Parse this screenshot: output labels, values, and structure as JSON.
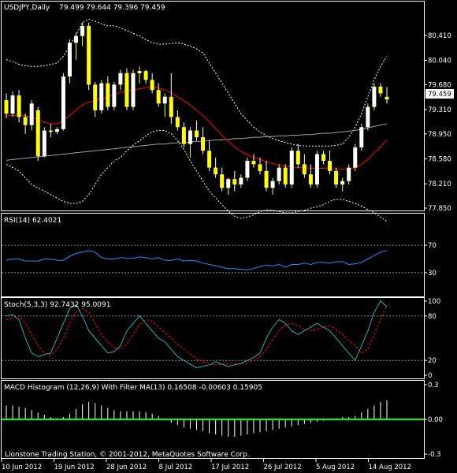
{
  "header": {
    "symbol": "USDJPY,Daily",
    "ohlc": "79.499 79.644 79.396 79.459"
  },
  "current_price_label": "79.459",
  "footer_text": "Lionstone Trading Station, © 2001-2012, MetaQuotes Software Corp.",
  "colors": {
    "background": "#000000",
    "bull_candle": "#ffff00",
    "bear_candle": "#ffffff",
    "ma_fast": "#ff0000",
    "ma_slow": "#a0a0a0",
    "bands": "#ffffff",
    "rsi": "#1e90ff",
    "stoch_main": "#20b2aa",
    "stoch_signal": "#ff0000",
    "macd_hist": "#ffffff",
    "macd_filter": "#00ff00"
  },
  "chart_data": [
    {
      "type": "candlestick",
      "title": "USDJPY,Daily",
      "y_ticks": [
        "80.410",
        "80.040",
        "79.680",
        "79.310",
        "78.950",
        "78.580",
        "78.210",
        "77.850"
      ],
      "ylim": [
        77.85,
        80.7
      ],
      "x_ticks": [
        "10 Jun 2012",
        "19 Jun 2012",
        "28 Jun 2012",
        "8 Jul 2012",
        "17 Jul 2012",
        "26 Jul 2012",
        "5 Aug 2012",
        "14 Aug 2012"
      ],
      "candles": [
        [
          79.45,
          79.55,
          79.18,
          79.25
        ],
        [
          79.25,
          79.58,
          79.2,
          79.52
        ],
        [
          79.52,
          79.6,
          79.12,
          79.2
        ],
        [
          79.2,
          79.25,
          78.95,
          79.08
        ],
        [
          79.08,
          79.45,
          79.0,
          79.4
        ],
        [
          79.3,
          79.35,
          78.55,
          78.62
        ],
        [
          78.62,
          79.05,
          78.6,
          79.0
        ],
        [
          79.0,
          79.1,
          78.9,
          78.98
        ],
        [
          78.98,
          79.05,
          78.95,
          79.02
        ],
        [
          79.02,
          79.85,
          79.0,
          79.8
        ],
        [
          79.8,
          80.35,
          79.7,
          80.3
        ],
        [
          80.3,
          80.45,
          80.05,
          80.4
        ],
        [
          80.4,
          80.6,
          80.25,
          80.55
        ],
        [
          80.55,
          80.6,
          79.6,
          79.68
        ],
        [
          79.68,
          79.72,
          79.2,
          79.3
        ],
        [
          79.3,
          79.75,
          79.25,
          79.7
        ],
        [
          79.7,
          79.8,
          79.3,
          79.35
        ],
        [
          79.35,
          79.72,
          79.3,
          79.68
        ],
        [
          79.68,
          79.9,
          79.6,
          79.85
        ],
        [
          79.85,
          79.92,
          79.3,
          79.35
        ],
        [
          79.35,
          79.9,
          79.3,
          79.85
        ],
        [
          79.85,
          79.95,
          79.7,
          79.88
        ],
        [
          79.88,
          79.9,
          79.7,
          79.75
        ],
        [
          79.75,
          79.85,
          79.55,
          79.6
        ],
        [
          79.6,
          79.7,
          79.35,
          79.4
        ],
        [
          79.4,
          79.55,
          79.2,
          79.5
        ],
        [
          79.5,
          79.85,
          79.1,
          79.2
        ],
        [
          79.2,
          79.3,
          79.0,
          79.05
        ],
        [
          79.05,
          79.12,
          78.75,
          78.8
        ],
        [
          78.8,
          79.05,
          78.6,
          79.0
        ],
        [
          79.0,
          79.15,
          78.85,
          78.9
        ],
        [
          78.9,
          79.05,
          78.65,
          78.7
        ],
        [
          78.7,
          78.85,
          78.4,
          78.45
        ],
        [
          78.45,
          78.6,
          78.3,
          78.35
        ],
        [
          78.35,
          78.45,
          78.1,
          78.15
        ],
        [
          78.15,
          78.3,
          78.05,
          78.28
        ],
        [
          78.28,
          78.4,
          78.1,
          78.2
        ],
        [
          78.2,
          78.35,
          78.15,
          78.3
        ],
        [
          78.3,
          78.6,
          78.25,
          78.55
        ],
        [
          78.55,
          78.65,
          78.45,
          78.5
        ],
        [
          78.5,
          78.6,
          78.35,
          78.4
        ],
        [
          78.4,
          78.55,
          78.1,
          78.15
        ],
        [
          78.15,
          78.3,
          78.05,
          78.25
        ],
        [
          78.25,
          78.5,
          78.2,
          78.45
        ],
        [
          78.45,
          78.5,
          78.15,
          78.2
        ],
        [
          78.2,
          78.75,
          78.15,
          78.7
        ],
        [
          78.7,
          78.8,
          78.45,
          78.5
        ],
        [
          78.5,
          78.65,
          78.3,
          78.35
        ],
        [
          78.35,
          78.5,
          78.15,
          78.2
        ],
        [
          78.2,
          78.7,
          78.15,
          78.65
        ],
        [
          78.65,
          78.7,
          78.5,
          78.55
        ],
        [
          78.55,
          78.7,
          78.35,
          78.4
        ],
        [
          78.4,
          78.45,
          78.15,
          78.2
        ],
        [
          78.2,
          78.3,
          78.1,
          78.25
        ],
        [
          78.25,
          78.5,
          78.2,
          78.45
        ],
        [
          78.45,
          78.8,
          78.4,
          78.75
        ],
        [
          78.75,
          79.1,
          78.7,
          79.05
        ],
        [
          79.05,
          79.4,
          79.0,
          79.35
        ],
        [
          79.35,
          79.7,
          79.3,
          79.65
        ],
        [
          79.65,
          79.7,
          79.5,
          79.55
        ],
        [
          79.499,
          79.644,
          79.396,
          79.459
        ]
      ],
      "ma_fast": [
        79.22,
        79.22,
        79.23,
        79.22,
        79.2,
        79.16,
        79.12,
        79.1,
        79.1,
        79.15,
        79.22,
        79.3,
        79.38,
        79.42,
        79.44,
        79.47,
        79.5,
        79.53,
        79.57,
        79.58,
        79.6,
        79.62,
        79.63,
        79.64,
        79.63,
        79.6,
        79.56,
        79.5,
        79.44,
        79.38,
        79.3,
        79.22,
        79.13,
        79.03,
        78.93,
        78.84,
        78.76,
        78.69,
        78.64,
        78.6,
        78.57,
        78.54,
        78.51,
        78.49,
        78.47,
        78.46,
        78.45,
        78.45,
        78.44,
        78.44,
        78.44,
        78.44,
        78.43,
        78.43,
        78.43,
        78.45,
        78.5,
        78.57,
        78.67,
        78.76,
        78.86
      ],
      "ma_slow": [
        78.56,
        78.57,
        78.58,
        78.59,
        78.6,
        78.61,
        78.62,
        78.63,
        78.64,
        78.65,
        78.66,
        78.67,
        78.68,
        78.69,
        78.7,
        78.71,
        78.72,
        78.73,
        78.74,
        78.75,
        78.76,
        78.77,
        78.78,
        78.79,
        78.8,
        78.8,
        78.81,
        78.82,
        78.82,
        78.83,
        78.84,
        78.84,
        78.85,
        78.86,
        78.86,
        78.87,
        78.88,
        78.88,
        78.89,
        78.9,
        78.9,
        78.91,
        78.91,
        78.92,
        78.92,
        78.93,
        78.93,
        78.94,
        78.94,
        78.95,
        78.96,
        78.96,
        78.97,
        78.98,
        78.99,
        79.0,
        79.02,
        79.04,
        79.06,
        79.08,
        79.1
      ],
      "band_upper": [
        80.05,
        80.02,
        79.98,
        79.96,
        79.95,
        79.95,
        79.96,
        79.98,
        80.0,
        80.1,
        80.25,
        80.42,
        80.6,
        80.65,
        80.62,
        80.58,
        80.55,
        80.55,
        80.52,
        80.48,
        80.44,
        80.4,
        80.35,
        80.3,
        80.28,
        80.28,
        80.29,
        80.3,
        80.28,
        80.25,
        80.21,
        80.15,
        80.0,
        79.85,
        79.7,
        79.55,
        79.4,
        79.25,
        79.15,
        79.05,
        78.98,
        78.92,
        78.88,
        78.85,
        78.82,
        78.8,
        78.78,
        78.77,
        78.77,
        78.77,
        78.77,
        78.77,
        78.78,
        78.8,
        78.9,
        79.05,
        79.25,
        79.5,
        79.75,
        79.95,
        80.1
      ],
      "band_lower": [
        78.5,
        78.45,
        78.4,
        78.3,
        78.2,
        78.15,
        78.1,
        78.05,
        78.0,
        77.95,
        77.92,
        77.92,
        77.95,
        78.05,
        78.2,
        78.35,
        78.45,
        78.55,
        78.6,
        78.7,
        78.78,
        78.85,
        78.92,
        78.98,
        79.0,
        79.0,
        78.95,
        78.85,
        78.72,
        78.55,
        78.4,
        78.25,
        78.1,
        78.0,
        77.9,
        77.8,
        77.73,
        77.7,
        77.72,
        77.75,
        77.8,
        77.82,
        77.82,
        77.8,
        77.78,
        77.78,
        77.8,
        77.82,
        77.85,
        77.87,
        77.9,
        77.95,
        77.98,
        77.98,
        77.95,
        77.92,
        77.88,
        77.83,
        77.78,
        77.72,
        77.65
      ]
    },
    {
      "type": "line",
      "title": "RSI(14) 62.4021",
      "ylim": [
        0,
        100
      ],
      "levels": [
        70,
        30
      ],
      "y_ticks": [
        "70",
        "30"
      ],
      "values": [
        48,
        50,
        50,
        47,
        47,
        47,
        50,
        50,
        48,
        48,
        54,
        58,
        60,
        62,
        60,
        52,
        50,
        50,
        52,
        51,
        51,
        53,
        52,
        50,
        52,
        48,
        48,
        50,
        47,
        48,
        47,
        44,
        42,
        40,
        38,
        36,
        36,
        35,
        34,
        36,
        39,
        41,
        40,
        42,
        38,
        42,
        42,
        44,
        42,
        45,
        45,
        44,
        46,
        46,
        42,
        43,
        45,
        50,
        55,
        60,
        62.4
      ]
    },
    {
      "type": "line",
      "title": "Stoch(5,3,3) 92.7432 95.0091",
      "ylim": [
        0,
        100
      ],
      "levels": [
        80,
        20
      ],
      "y_ticks": [
        "100",
        "80",
        "20",
        "0"
      ],
      "series": [
        {
          "values": [
            80,
            82,
            75,
            50,
            30,
            25,
            28,
            30,
            50,
            70,
            90,
            95,
            80,
            60,
            50,
            40,
            30,
            32,
            40,
            60,
            70,
            80,
            70,
            60,
            50,
            45,
            35,
            25,
            20,
            15,
            10,
            12,
            14,
            18,
            15,
            12,
            14,
            16,
            20,
            24,
            30,
            50,
            65,
            75,
            70,
            60,
            55,
            60,
            65,
            70,
            65,
            60,
            50,
            40,
            30,
            20,
            40,
            60,
            85,
            100,
            92.7
          ]
        },
        {
          "values": [
            75,
            78,
            80,
            70,
            55,
            40,
            30,
            27,
            35,
            50,
            70,
            85,
            90,
            85,
            70,
            55,
            45,
            38,
            35,
            42,
            55,
            68,
            75,
            73,
            65,
            58,
            50,
            42,
            35,
            28,
            22,
            18,
            15,
            14,
            15,
            16,
            15,
            15,
            17,
            20,
            25,
            35,
            48,
            60,
            68,
            70,
            67,
            62,
            60,
            62,
            65,
            67,
            62,
            55,
            47,
            40,
            30,
            35,
            55,
            75,
            95
          ]
        }
      ]
    },
    {
      "type": "bar",
      "title": "MACD Histogram (12,26,9) With Filter MA(13) 0.16508 -0.00603 0.15905",
      "ylim": [
        -0.3,
        0.3
      ],
      "y_ticks": [
        "0.3",
        "0.00",
        "-0.3"
      ],
      "values": [
        0.12,
        0.12,
        0.11,
        0.1,
        0.08,
        0.06,
        0.04,
        0.02,
        0.01,
        0.02,
        0.05,
        0.09,
        0.13,
        0.15,
        0.14,
        0.12,
        0.1,
        0.08,
        0.07,
        0.07,
        0.07,
        0.07,
        0.06,
        0.05,
        0.03,
        0.0,
        -0.03,
        -0.05,
        -0.07,
        -0.08,
        -0.09,
        -0.1,
        -0.12,
        -0.13,
        -0.14,
        -0.15,
        -0.15,
        -0.14,
        -0.13,
        -0.12,
        -0.11,
        -0.1,
        -0.09,
        -0.08,
        -0.07,
        -0.06,
        -0.05,
        -0.04,
        -0.03,
        -0.02,
        -0.01,
        0.0,
        0.01,
        0.02,
        0.02,
        0.03,
        0.06,
        0.09,
        0.12,
        0.15,
        0.165
      ],
      "filter_value": 0.0
    }
  ]
}
